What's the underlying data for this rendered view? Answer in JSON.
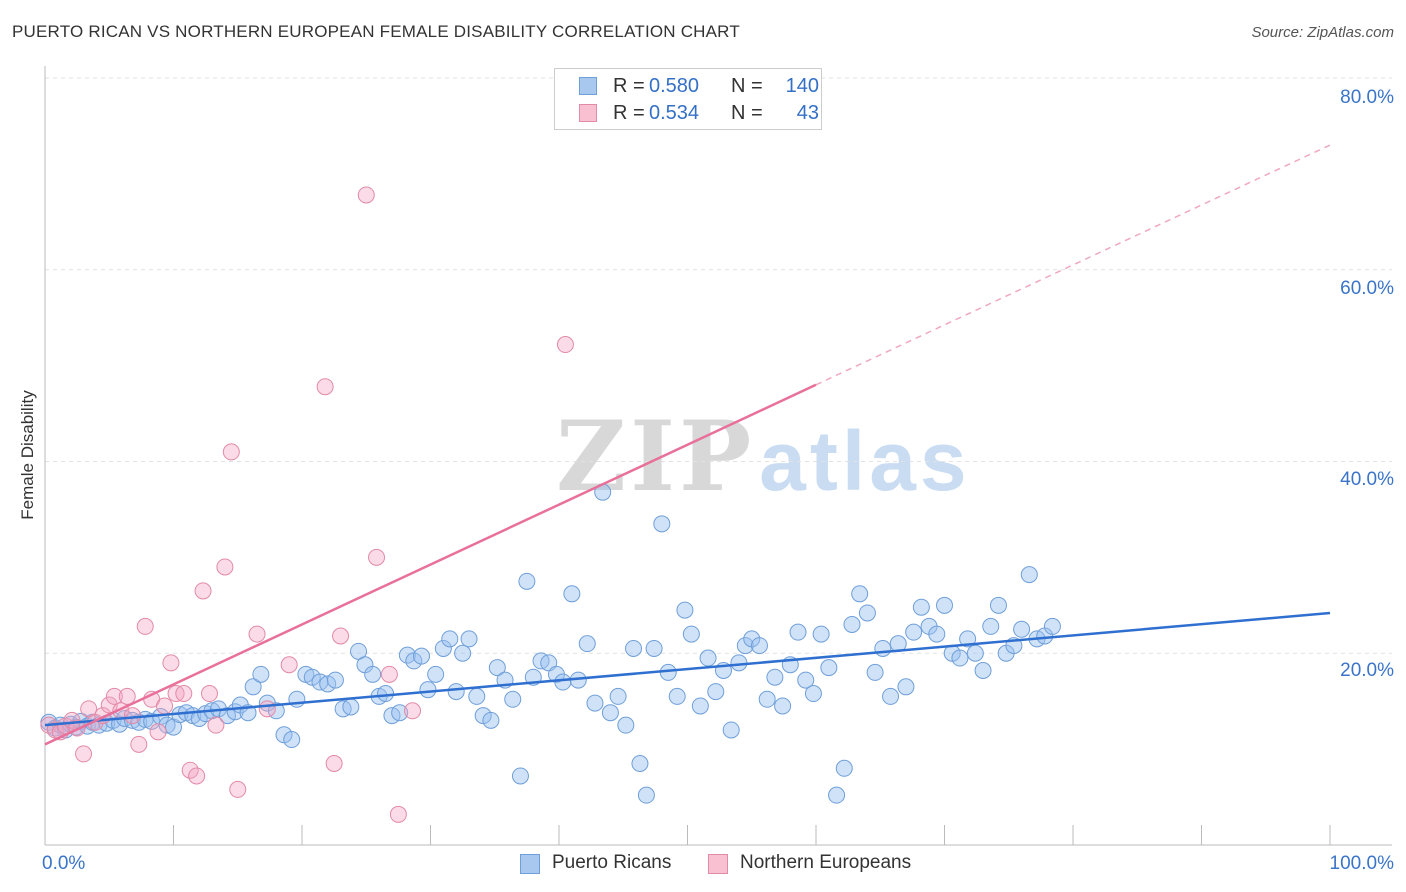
{
  "title": "PUERTO RICAN VS NORTHERN EUROPEAN FEMALE DISABILITY CORRELATION CHART",
  "source": "Source: ZipAtlas.com",
  "watermark": {
    "zip": "ZIP",
    "atlas": "atlas"
  },
  "legend_top": {
    "rows": [
      {
        "r_label": "R = ",
        "r_value": "0.580",
        "n_label": "N = ",
        "n_value": "140",
        "color": "#a8c8f0",
        "border": "#6f9fd8"
      },
      {
        "r_label": "R = ",
        "r_value": "0.534",
        "n_label": "N = ",
        "n_value": "43",
        "color": "#f8c0d0",
        "border": "#e28aa6"
      }
    ]
  },
  "legend_bottom": [
    {
      "label": "Puerto Ricans",
      "color": "#a8c8f0",
      "border": "#6f9fd8"
    },
    {
      "label": "Northern Europeans",
      "color": "#f8c0d0",
      "border": "#e28aa6"
    }
  ],
  "chart_data": {
    "type": "scatter",
    "title": "PUERTO RICAN VS NORTHERN EUROPEAN FEMALE DISABILITY CORRELATION CHART",
    "xlabel": "",
    "ylabel": "Female Disability",
    "xlim": [
      0,
      100
    ],
    "ylim": [
      0,
      80
    ],
    "x_tick_labels": [
      "0.0%",
      "100.0%"
    ],
    "y_tick_labels": [
      "20.0%",
      "40.0%",
      "60.0%",
      "80.0%"
    ],
    "y_ticks": [
      20,
      40,
      60,
      80
    ],
    "grid": true,
    "legend_placement": "top-center and bottom",
    "series": [
      {
        "name": "Puerto Ricans",
        "color": "#7aa8e0",
        "trend": {
          "x0": 0,
          "y0": 12.5,
          "x1": 100,
          "y1": 24.2
        },
        "points": [
          [
            0.3,
            12.8
          ],
          [
            0.8,
            12.2
          ],
          [
            1.2,
            12.5
          ],
          [
            1.6,
            12.0
          ],
          [
            2.0,
            12.6
          ],
          [
            2.4,
            12.3
          ],
          [
            2.8,
            12.9
          ],
          [
            3.3,
            12.4
          ],
          [
            3.7,
            12.8
          ],
          [
            4.2,
            12.5
          ],
          [
            4.8,
            12.7
          ],
          [
            5.3,
            13.0
          ],
          [
            5.8,
            12.6
          ],
          [
            6.2,
            13.2
          ],
          [
            6.8,
            13.0
          ],
          [
            7.3,
            12.8
          ],
          [
            7.8,
            13.1
          ],
          [
            8.3,
            12.9
          ],
          [
            9.0,
            13.4
          ],
          [
            9.5,
            12.5
          ],
          [
            10.0,
            12.3
          ],
          [
            10.5,
            13.6
          ],
          [
            11.0,
            13.8
          ],
          [
            11.5,
            13.5
          ],
          [
            12.0,
            13.2
          ],
          [
            12.5,
            13.7
          ],
          [
            13.0,
            14.0
          ],
          [
            13.5,
            14.2
          ],
          [
            14.2,
            13.5
          ],
          [
            14.8,
            13.9
          ],
          [
            15.2,
            14.6
          ],
          [
            15.8,
            13.8
          ],
          [
            16.2,
            16.5
          ],
          [
            16.8,
            17.8
          ],
          [
            17.3,
            14.8
          ],
          [
            18.0,
            14.0
          ],
          [
            18.6,
            11.5
          ],
          [
            19.2,
            11.0
          ],
          [
            19.6,
            15.2
          ],
          [
            20.3,
            17.8
          ],
          [
            20.8,
            17.5
          ],
          [
            21.4,
            17.0
          ],
          [
            22.0,
            16.8
          ],
          [
            22.6,
            17.2
          ],
          [
            23.2,
            14.2
          ],
          [
            23.8,
            14.4
          ],
          [
            24.4,
            20.2
          ],
          [
            24.9,
            18.8
          ],
          [
            25.5,
            17.8
          ],
          [
            26.0,
            15.5
          ],
          [
            26.5,
            15.8
          ],
          [
            27.0,
            13.5
          ],
          [
            27.6,
            13.8
          ],
          [
            28.2,
            19.8
          ],
          [
            28.7,
            19.2
          ],
          [
            29.3,
            19.7
          ],
          [
            29.8,
            16.2
          ],
          [
            30.4,
            17.8
          ],
          [
            31.0,
            20.5
          ],
          [
            31.5,
            21.5
          ],
          [
            32.0,
            16.0
          ],
          [
            32.5,
            20.0
          ],
          [
            33.0,
            21.5
          ],
          [
            33.6,
            15.5
          ],
          [
            34.1,
            13.5
          ],
          [
            34.7,
            13.0
          ],
          [
            35.2,
            18.5
          ],
          [
            35.8,
            17.2
          ],
          [
            36.4,
            15.2
          ],
          [
            37.0,
            7.2
          ],
          [
            37.5,
            27.5
          ],
          [
            38.0,
            17.5
          ],
          [
            38.6,
            19.2
          ],
          [
            39.2,
            19.0
          ],
          [
            39.8,
            17.8
          ],
          [
            40.3,
            17.0
          ],
          [
            41.0,
            26.2
          ],
          [
            41.5,
            17.2
          ],
          [
            42.2,
            21.0
          ],
          [
            42.8,
            14.8
          ],
          [
            43.4,
            36.8
          ],
          [
            44.0,
            13.8
          ],
          [
            44.6,
            15.5
          ],
          [
            45.2,
            12.5
          ],
          [
            45.8,
            20.5
          ],
          [
            46.3,
            8.5
          ],
          [
            46.8,
            5.2
          ],
          [
            47.4,
            20.5
          ],
          [
            48.0,
            33.5
          ],
          [
            48.5,
            18.0
          ],
          [
            49.2,
            15.5
          ],
          [
            49.8,
            24.5
          ],
          [
            50.3,
            22.0
          ],
          [
            51.0,
            14.5
          ],
          [
            51.6,
            19.5
          ],
          [
            52.2,
            16.0
          ],
          [
            52.8,
            18.2
          ],
          [
            53.4,
            12.0
          ],
          [
            54.0,
            19.0
          ],
          [
            54.5,
            20.8
          ],
          [
            55.0,
            21.5
          ],
          [
            55.6,
            20.8
          ],
          [
            56.2,
            15.2
          ],
          [
            56.8,
            17.5
          ],
          [
            57.4,
            14.5
          ],
          [
            58.0,
            18.8
          ],
          [
            58.6,
            22.2
          ],
          [
            59.2,
            17.2
          ],
          [
            59.8,
            15.8
          ],
          [
            60.4,
            22.0
          ],
          [
            61.0,
            18.5
          ],
          [
            61.6,
            5.2
          ],
          [
            62.2,
            8.0
          ],
          [
            62.8,
            23.0
          ],
          [
            63.4,
            26.2
          ],
          [
            64.0,
            24.2
          ],
          [
            64.6,
            18.0
          ],
          [
            65.2,
            20.5
          ],
          [
            65.8,
            15.5
          ],
          [
            66.4,
            21.0
          ],
          [
            67.0,
            16.5
          ],
          [
            67.6,
            22.2
          ],
          [
            68.2,
            24.8
          ],
          [
            68.8,
            22.8
          ],
          [
            69.4,
            22.0
          ],
          [
            70.0,
            25.0
          ],
          [
            70.6,
            20.0
          ],
          [
            71.2,
            19.5
          ],
          [
            71.8,
            21.5
          ],
          [
            72.4,
            20.0
          ],
          [
            73.0,
            18.2
          ],
          [
            73.6,
            22.8
          ],
          [
            74.2,
            25.0
          ],
          [
            74.8,
            20.0
          ],
          [
            75.4,
            20.8
          ],
          [
            76.0,
            22.5
          ],
          [
            76.6,
            28.2
          ],
          [
            77.2,
            21.5
          ],
          [
            77.8,
            21.8
          ],
          [
            78.4,
            22.8
          ]
        ]
      },
      {
        "name": "Northern Europeans",
        "color": "#f08cac",
        "trend": {
          "x0": 0,
          "y0": 10.5,
          "x1": 60,
          "y1": 48.0
        },
        "points": [
          [
            0.3,
            12.5
          ],
          [
            0.8,
            12.0
          ],
          [
            1.2,
            11.8
          ],
          [
            1.6,
            12.4
          ],
          [
            2.1,
            13.0
          ],
          [
            2.5,
            12.2
          ],
          [
            3.0,
            9.5
          ],
          [
            3.4,
            14.2
          ],
          [
            3.9,
            12.8
          ],
          [
            4.5,
            13.5
          ],
          [
            5.0,
            14.6
          ],
          [
            5.4,
            15.5
          ],
          [
            5.9,
            14.0
          ],
          [
            6.4,
            15.5
          ],
          [
            6.8,
            13.5
          ],
          [
            7.3,
            10.5
          ],
          [
            7.8,
            22.8
          ],
          [
            8.3,
            15.2
          ],
          [
            8.8,
            11.8
          ],
          [
            9.3,
            14.5
          ],
          [
            9.8,
            19.0
          ],
          [
            10.2,
            15.8
          ],
          [
            10.8,
            15.8
          ],
          [
            11.3,
            7.8
          ],
          [
            11.8,
            7.2
          ],
          [
            12.3,
            26.5
          ],
          [
            12.8,
            15.8
          ],
          [
            13.3,
            12.5
          ],
          [
            14.0,
            29.0
          ],
          [
            14.5,
            41.0
          ],
          [
            15.0,
            5.8
          ],
          [
            16.5,
            22.0
          ],
          [
            17.3,
            14.2
          ],
          [
            19.0,
            18.8
          ],
          [
            21.8,
            47.8
          ],
          [
            22.5,
            8.5
          ],
          [
            23.0,
            21.8
          ],
          [
            25.0,
            67.8
          ],
          [
            25.8,
            30.0
          ],
          [
            26.8,
            17.8
          ],
          [
            27.5,
            3.2
          ],
          [
            28.6,
            14.0
          ],
          [
            40.5,
            52.2
          ]
        ]
      }
    ]
  }
}
